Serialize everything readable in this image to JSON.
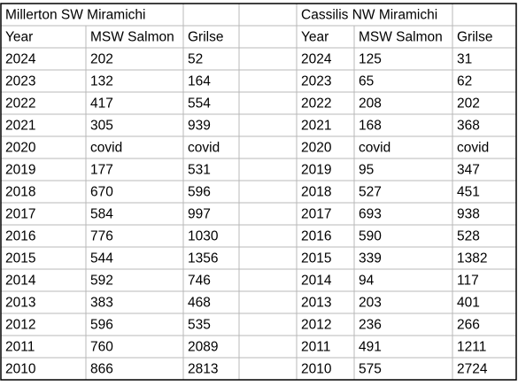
{
  "tables": [
    {
      "title": "Millerton SW Miramichi",
      "header": [
        "Year",
        "MSW Salmon",
        "Grilse"
      ],
      "rows": [
        [
          2024,
          202,
          52
        ],
        [
          2023,
          132,
          164
        ],
        [
          2022,
          417,
          554
        ],
        [
          2021,
          305,
          939
        ],
        [
          2020,
          "covid",
          "covid"
        ],
        [
          2019,
          177,
          531
        ],
        [
          2018,
          670,
          596
        ],
        [
          2017,
          584,
          997
        ],
        [
          2016,
          776,
          1030
        ],
        [
          2015,
          544,
          1356
        ],
        [
          2014,
          592,
          746
        ],
        [
          2013,
          383,
          468
        ],
        [
          2012,
          596,
          535
        ],
        [
          2011,
          760,
          2089
        ],
        [
          2010,
          866,
          2813
        ]
      ]
    },
    {
      "title": "Cassilis NW Miramichi",
      "header": [
        "Year",
        "MSW Salmon",
        "Grilse"
      ],
      "rows": [
        [
          2024,
          125,
          31
        ],
        [
          2023,
          65,
          62
        ],
        [
          2022,
          208,
          202
        ],
        [
          2021,
          168,
          368
        ],
        [
          2020,
          "covid",
          "covid"
        ],
        [
          2019,
          95,
          347
        ],
        [
          2018,
          527,
          451
        ],
        [
          2017,
          693,
          938
        ],
        [
          2016,
          590,
          528
        ],
        [
          2015,
          339,
          1382
        ],
        [
          2014,
          94,
          117
        ],
        [
          2013,
          203,
          401
        ],
        [
          2012,
          236,
          266
        ],
        [
          2011,
          491,
          1211
        ],
        [
          2010,
          575,
          2724
        ]
      ]
    }
  ]
}
